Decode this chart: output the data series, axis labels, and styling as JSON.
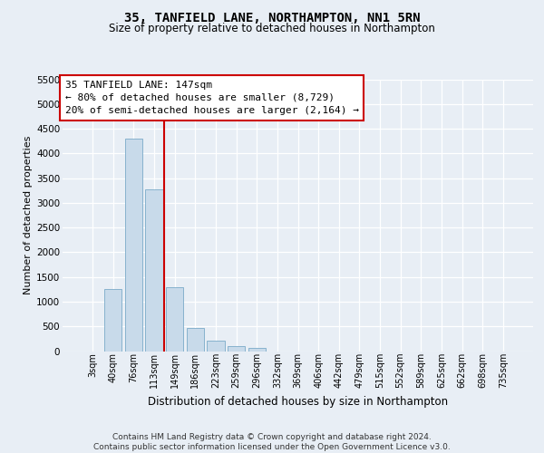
{
  "title": "35, TANFIELD LANE, NORTHAMPTON, NN1 5RN",
  "subtitle": "Size of property relative to detached houses in Northampton",
  "xlabel": "Distribution of detached houses by size in Northampton",
  "ylabel": "Number of detached properties",
  "footer_line1": "Contains HM Land Registry data © Crown copyright and database right 2024.",
  "footer_line2": "Contains public sector information licensed under the Open Government Licence v3.0.",
  "annotation_line1": "35 TANFIELD LANE: 147sqm",
  "annotation_line2": "← 80% of detached houses are smaller (8,729)",
  "annotation_line3": "20% of semi-detached houses are larger (2,164) →",
  "categories": [
    "3sqm",
    "40sqm",
    "76sqm",
    "113sqm",
    "149sqm",
    "186sqm",
    "223sqm",
    "259sqm",
    "296sqm",
    "332sqm",
    "369sqm",
    "406sqm",
    "442sqm",
    "479sqm",
    "515sqm",
    "552sqm",
    "589sqm",
    "625sqm",
    "662sqm",
    "698sqm",
    "735sqm"
  ],
  "values": [
    0,
    1250,
    4300,
    3280,
    1300,
    470,
    210,
    100,
    70,
    0,
    0,
    0,
    0,
    0,
    0,
    0,
    0,
    0,
    0,
    0,
    0
  ],
  "ylim": [
    0,
    5500
  ],
  "yticks": [
    0,
    500,
    1000,
    1500,
    2000,
    2500,
    3000,
    3500,
    4000,
    4500,
    5000,
    5500
  ],
  "vline_pos": 3.5,
  "bar_color": "#c8daea",
  "bar_edge_color": "#7aaac8",
  "vline_color": "#cc0000",
  "background_color": "#e8eef5",
  "grid_color": "#ffffff",
  "ann_box_edge_color": "#cc0000",
  "ann_box_face_color": "#ffffff",
  "title_fontsize": 10,
  "subtitle_fontsize": 8.5,
  "ylabel_fontsize": 8,
  "xlabel_fontsize": 8.5,
  "tick_fontsize": 7.5,
  "xtick_fontsize": 7,
  "ann_fontsize": 8
}
